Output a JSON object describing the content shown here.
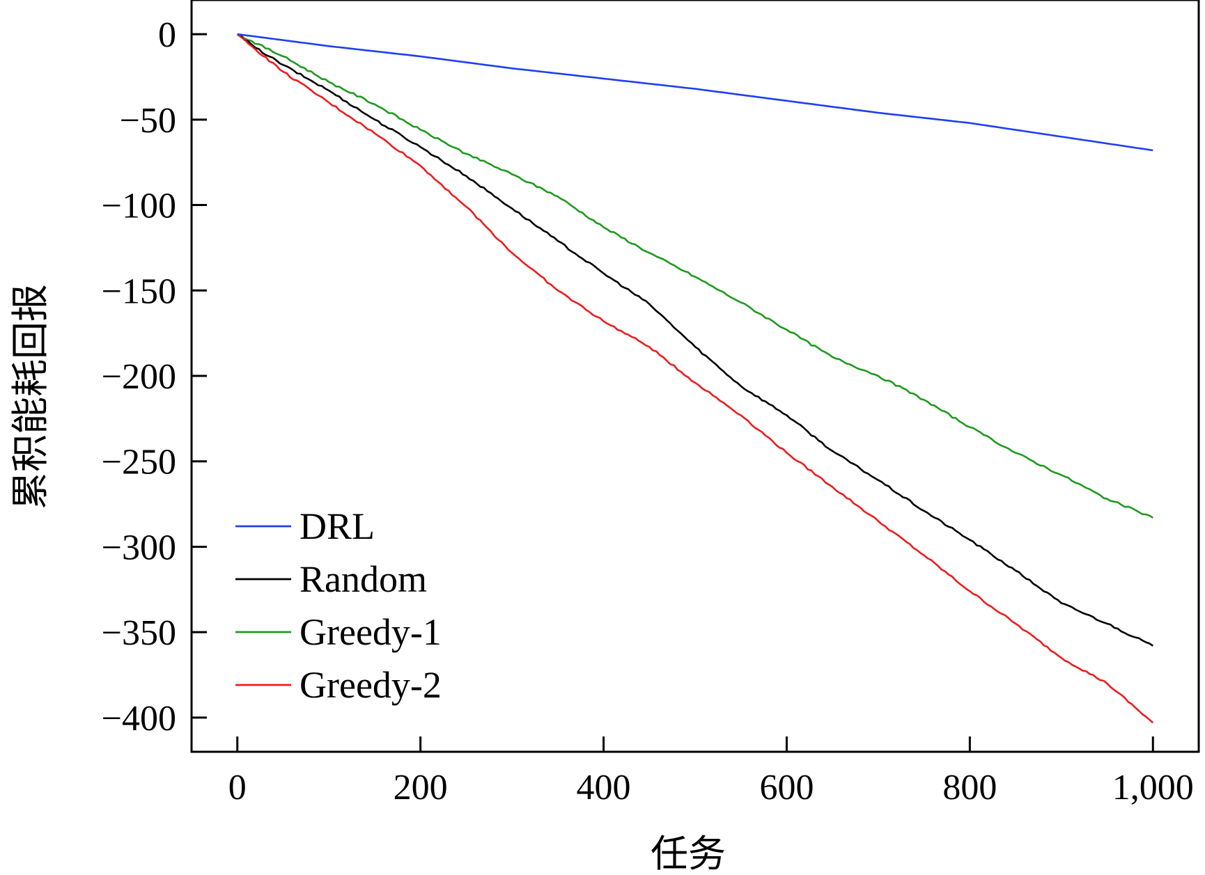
{
  "chart_data": {
    "type": "line",
    "title": "",
    "xlabel": "任务",
    "ylabel": "累积能耗回报",
    "xlim": [
      -50,
      1050
    ],
    "ylim": [
      -420,
      20
    ],
    "xticks": [
      {
        "value": 0,
        "label": "0"
      },
      {
        "value": 200,
        "label": "200"
      },
      {
        "value": 400,
        "label": "400"
      },
      {
        "value": 600,
        "label": "600"
      },
      {
        "value": 800,
        "label": "800"
      },
      {
        "value": 1000,
        "label": "1,000"
      }
    ],
    "yticks": [
      {
        "value": 0,
        "label": "0"
      },
      {
        "value": -50,
        "label": "−50"
      },
      {
        "value": -100,
        "label": "−100"
      },
      {
        "value": -150,
        "label": "−150"
      },
      {
        "value": -200,
        "label": "−200"
      },
      {
        "value": -250,
        "label": "−250"
      },
      {
        "value": -300,
        "label": "−300"
      },
      {
        "value": -350,
        "label": "−350"
      },
      {
        "value": -400,
        "label": "−400"
      }
    ],
    "grid": false,
    "legend_position": "bottom-left",
    "series": [
      {
        "name": "DRL",
        "color": "#1f3ff0",
        "x": [
          0,
          100,
          200,
          300,
          400,
          500,
          600,
          700,
          800,
          900,
          1000
        ],
        "y": [
          0,
          -7,
          -13,
          -20,
          -26,
          -32,
          -39,
          -46,
          -52,
          -60,
          -68
        ]
      },
      {
        "name": "Random",
        "color": "#000000",
        "x": [
          0,
          20,
          50,
          100,
          150,
          200,
          250,
          300,
          350,
          400,
          450,
          500,
          550,
          600,
          650,
          700,
          750,
          800,
          850,
          900,
          950,
          1000
        ],
        "y": [
          0,
          -8,
          -18,
          -33,
          -50,
          -66,
          -83,
          -102,
          -121,
          -140,
          -158,
          -183,
          -206,
          -223,
          -244,
          -261,
          -279,
          -296,
          -314,
          -333,
          -345,
          -358
        ]
      },
      {
        "name": "Greedy-1",
        "color": "#1e9a1e",
        "x": [
          0,
          50,
          100,
          150,
          200,
          250,
          300,
          350,
          400,
          450,
          500,
          550,
          600,
          650,
          700,
          750,
          800,
          850,
          900,
          950,
          1000
        ],
        "y": [
          0,
          -13,
          -28,
          -41,
          -56,
          -70,
          -82,
          -95,
          -113,
          -128,
          -142,
          -157,
          -173,
          -189,
          -200,
          -214,
          -230,
          -245,
          -258,
          -272,
          -283
        ]
      },
      {
        "name": "Greedy-2",
        "color": "#ee1c1c",
        "x": [
          0,
          20,
          50,
          100,
          150,
          200,
          250,
          300,
          350,
          400,
          450,
          500,
          550,
          600,
          650,
          700,
          750,
          800,
          850,
          900,
          950,
          1000
        ],
        "y": [
          0,
          -9,
          -22,
          -40,
          -58,
          -77,
          -101,
          -128,
          -150,
          -168,
          -183,
          -204,
          -223,
          -245,
          -265,
          -285,
          -305,
          -326,
          -345,
          -365,
          -380,
          -403
        ]
      }
    ]
  }
}
